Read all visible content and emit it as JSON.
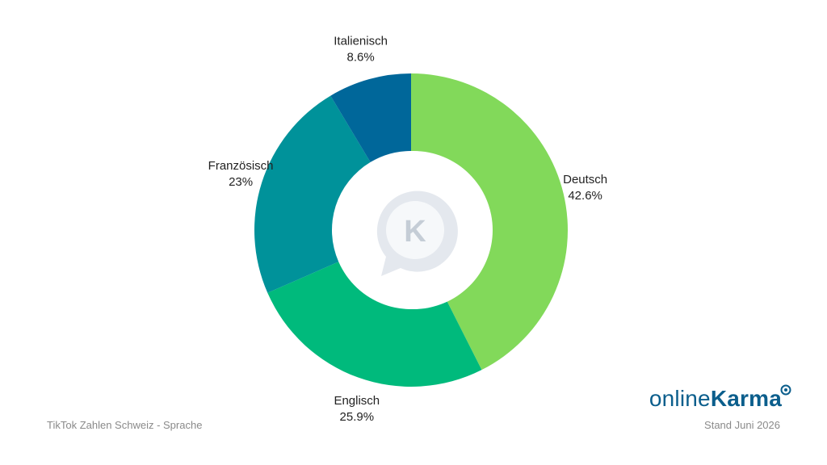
{
  "chart_data": {
    "type": "pie",
    "donut": true,
    "categories": [
      "Deutsch",
      "Englisch",
      "Französisch",
      "Italienisch"
    ],
    "values": [
      42.6,
      25.9,
      23,
      8.6
    ],
    "value_labels": [
      "42.6%",
      "25.9%",
      "23%",
      "8.6%"
    ],
    "colors": [
      "#82d95a",
      "#00ba7c",
      "#00929a",
      "#00679a"
    ],
    "legend": "none"
  },
  "footer": {
    "left": "TikTok Zahlen Schweiz - Sprache",
    "right": "Stand Juni 2026"
  },
  "brand": {
    "light": "online",
    "bold": "Karma"
  },
  "center_logo": {
    "letter": "K"
  },
  "icons": {
    "center": "chat-bubble-k-icon",
    "brand": "magnifier-icon"
  }
}
